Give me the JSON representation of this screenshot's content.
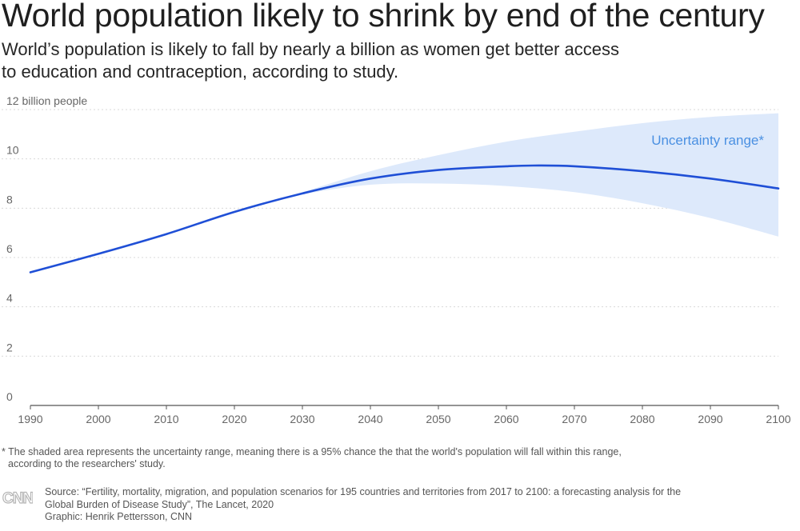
{
  "header": {
    "title": "World population likely to shrink by end of the century",
    "subtitle_line1": "World’s population is likely to fall by nearly a billion as women get better access",
    "subtitle_line2": "to education and contraception, according to study."
  },
  "footnote": {
    "line1": "* The shaded area represents the uncertainty range, meaning there is a 95% chance the that the world's population will fall within this range,",
    "line2": "according to the researchers' study."
  },
  "source": {
    "line1": "Source: “Fertility, mortality, migration, and population scenarios for 195 countries and territories from 2017 to 2100: a forecasting analysis for the",
    "line2": "Global Burden of Disease Study”, The Lancet, 2020",
    "line3": "Graphic: Henrik Pettersson, CNN"
  },
  "logo": {
    "name": "CNN",
    "icon": "cnn-logo"
  },
  "colors": {
    "line": "#1f4fd6",
    "band": "#dde9fb",
    "band_label": "#4a90e2",
    "grid": "#d9d9d9",
    "axis": "#555555"
  },
  "chart_data": {
    "type": "line",
    "title": "World population likely to shrink by end of the century",
    "ylabel": "12 billion people",
    "xlim": [
      1990,
      2100
    ],
    "ylim": [
      0,
      12
    ],
    "xticks": [
      1990,
      2000,
      2010,
      2020,
      2030,
      2040,
      2050,
      2060,
      2070,
      2080,
      2090,
      2100
    ],
    "yticks": [
      0,
      2,
      4,
      6,
      8,
      10,
      12
    ],
    "ytick_labels": [
      "0",
      "2",
      "4",
      "6",
      "8",
      "10",
      "12 billion people"
    ],
    "grid": "horizontal dashed",
    "series": [
      {
        "x": [
          1990,
          2000,
          2010,
          2020,
          2030,
          2040,
          2050,
          2060,
          2064,
          2070,
          2080,
          2090,
          2100
        ],
        "values": [
          5.4,
          6.15,
          6.95,
          7.85,
          8.6,
          9.2,
          9.55,
          9.7,
          9.73,
          9.7,
          9.5,
          9.2,
          8.8
        ]
      }
    ],
    "uncertainty_band": {
      "label": "Uncertainty range*",
      "x": [
        2017,
        2020,
        2030,
        2040,
        2050,
        2060,
        2070,
        2080,
        2090,
        2100
      ],
      "lower": [
        7.6,
        7.85,
        8.55,
        8.95,
        9.0,
        8.9,
        8.65,
        8.2,
        7.6,
        6.85
      ],
      "upper": [
        7.6,
        7.85,
        8.65,
        9.5,
        10.15,
        10.7,
        11.1,
        11.45,
        11.7,
        11.85
      ]
    }
  }
}
